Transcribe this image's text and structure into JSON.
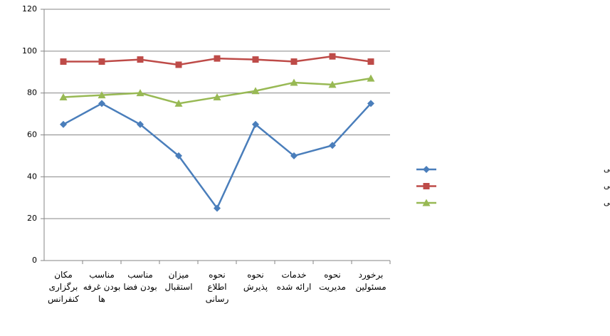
{
  "chart_data": {
    "type": "line",
    "categories": [
      "مکان برگزاری کنفرانس",
      "مناسب بودن غرفه ها",
      "مناسب بودن فضا",
      "میزان استقبال",
      "نحوه اطلاع رسانی",
      "نحوه پذیرش",
      "خدمات ارائه شده",
      "نحوه مدیریت",
      "برخورد مسئولین"
    ],
    "series": [
      {
        "name": "سیزدهمین کنفرانس ملی جوش و بازرسی",
        "color": "#4a7ebb",
        "marker": "diamond",
        "values": [
          65,
          75,
          65,
          50,
          25,
          65,
          50,
          55,
          75
        ]
      },
      {
        "name": "چهاردهمین کنفرانس ملی جوش و بازرسی",
        "color": "#be4b48",
        "marker": "square",
        "values": [
          95,
          95,
          96,
          93.5,
          96.5,
          96,
          95,
          97.5,
          95
        ]
      },
      {
        "name": "پانزدهمین کنفرانس ملی جوش و بازرسی",
        "color": "#98b954",
        "marker": "triangle",
        "values": [
          78,
          79,
          80,
          75,
          78,
          81,
          85,
          84,
          87
        ]
      }
    ],
    "ylim": [
      0,
      120
    ],
    "yticks": [
      0,
      20,
      40,
      60,
      80,
      100,
      120
    ],
    "grid": true,
    "legend": "right"
  }
}
